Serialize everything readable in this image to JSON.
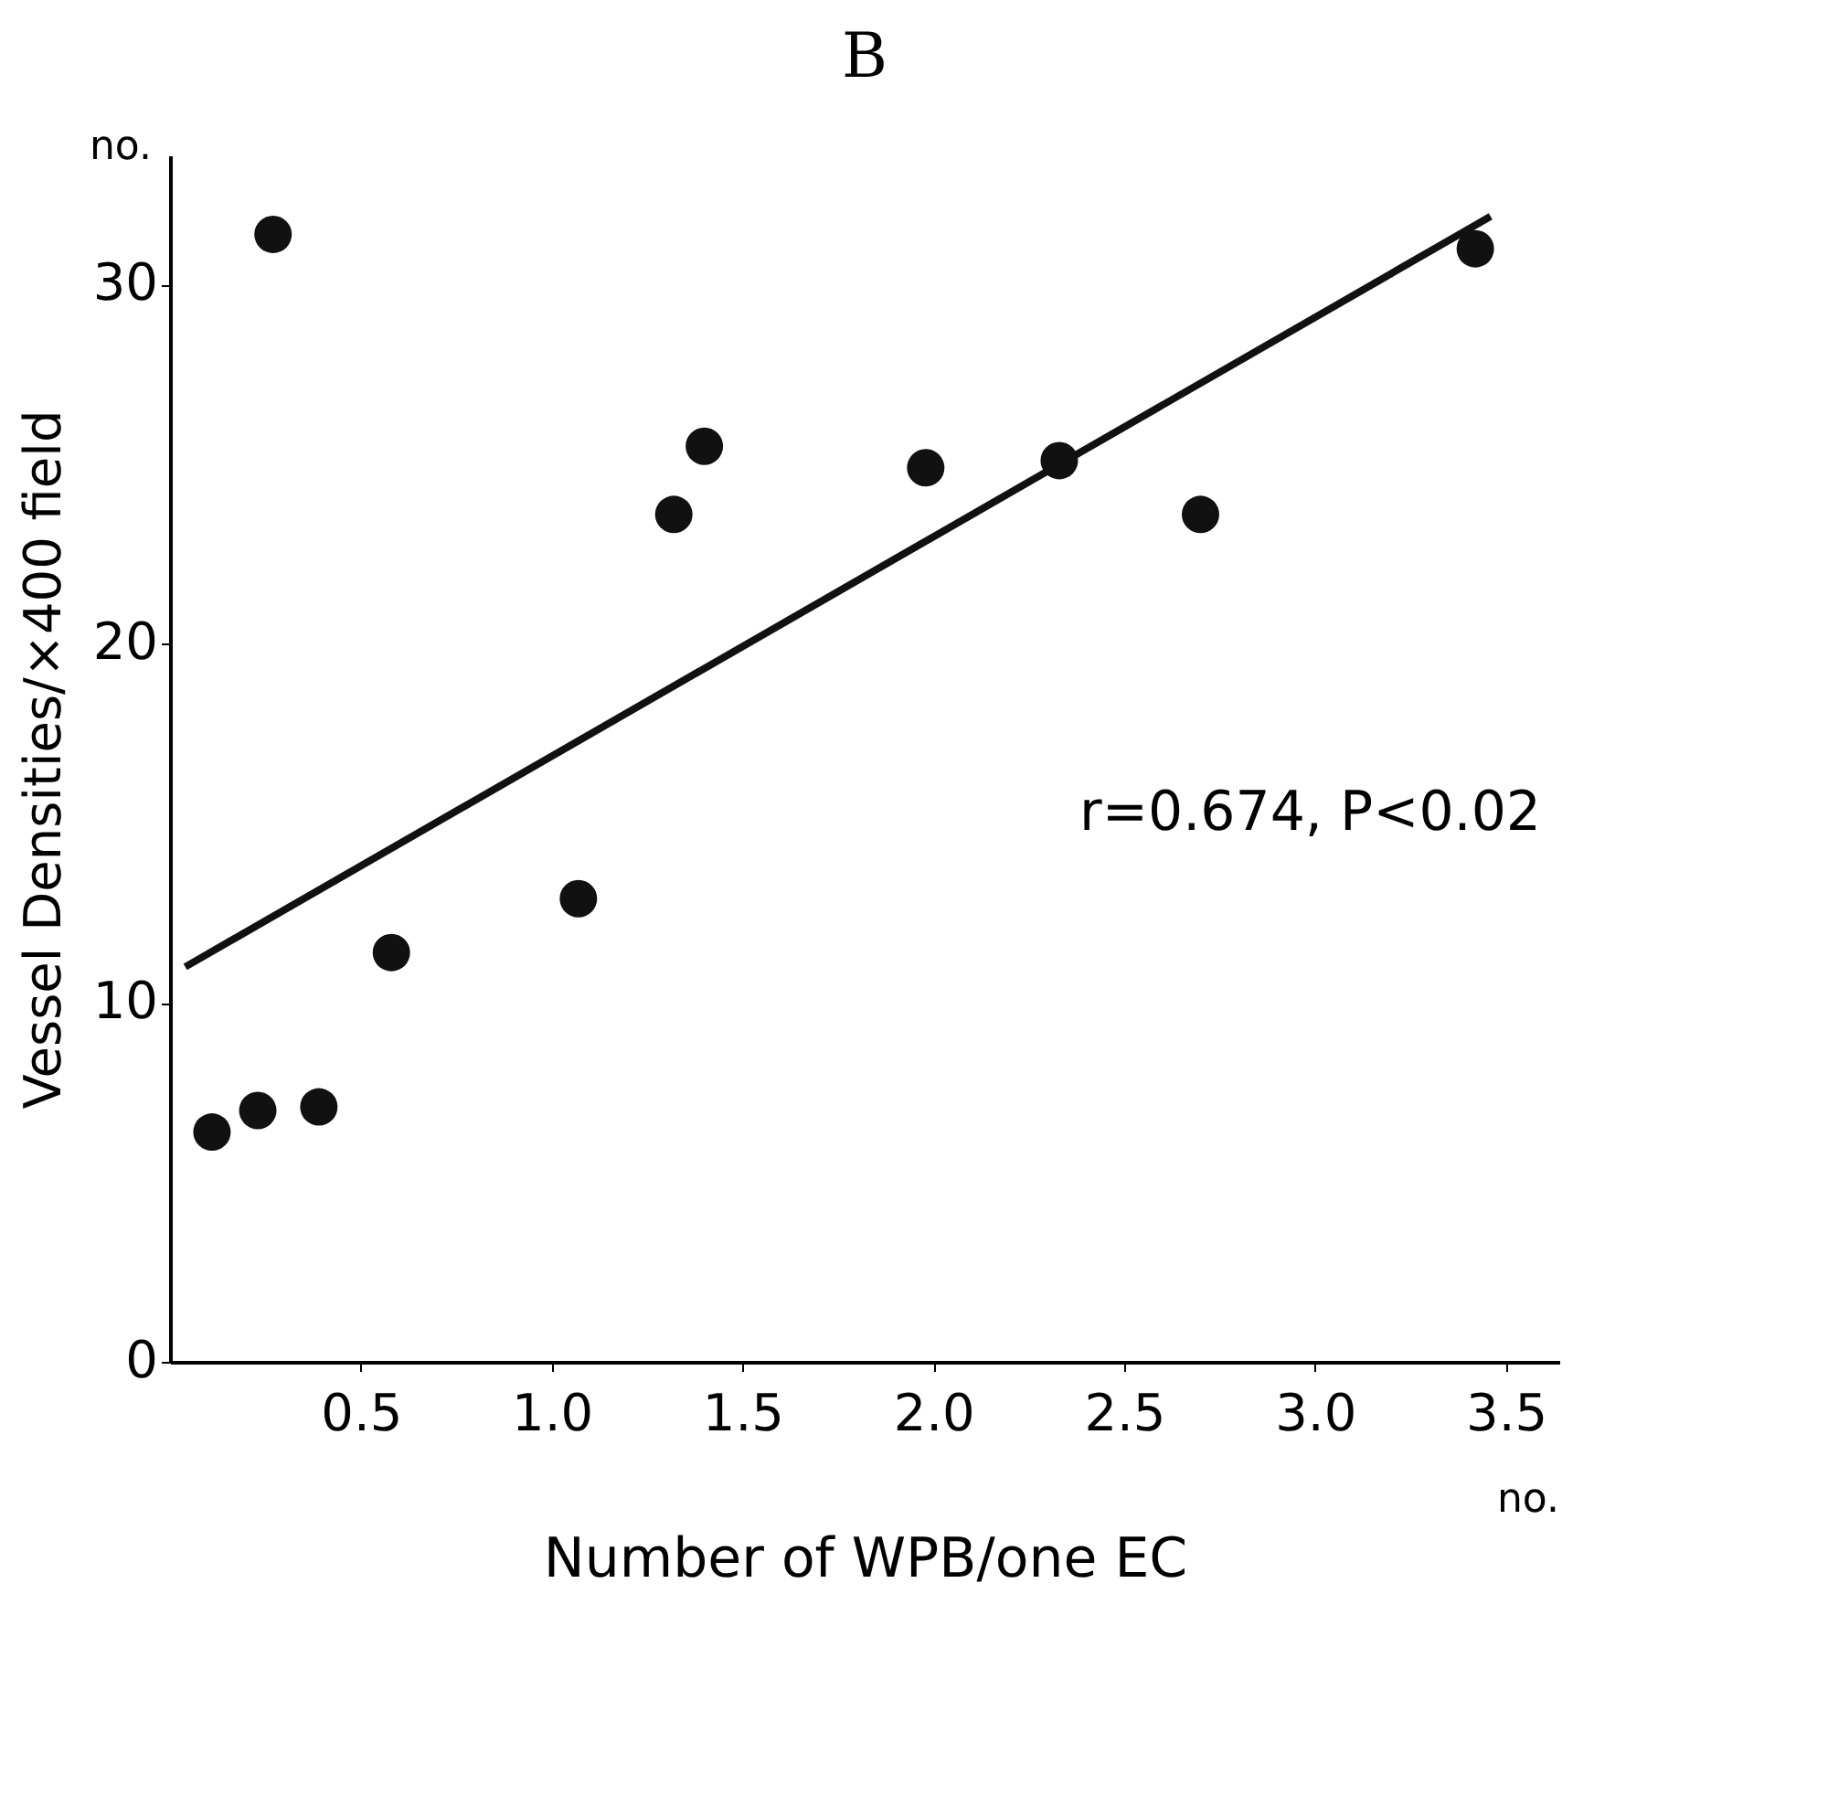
{
  "chart_data": {
    "type": "scatter",
    "title": "B",
    "xlabel": "Number of WPB/one EC",
    "ylabel": "Vessel Densities/×400 field",
    "x": [
      0.11,
      0.23,
      0.27,
      0.39,
      0.58,
      1.07,
      1.32,
      1.4,
      1.98,
      2.33,
      2.7,
      3.42
    ],
    "series": [
      {
        "color": "#111111",
        "marker": "circle",
        "values": [
          6.4,
          7.0,
          31.4,
          7.1,
          11.4,
          12.9,
          23.6,
          25.5,
          24.9,
          25.1,
          23.6,
          31.0
        ]
      },
      {
        "type": "line",
        "color": "#111111",
        "x": [
          0.04,
          3.46
        ],
        "values": [
          11.0,
          31.9
        ]
      }
    ],
    "xlim": [
      0,
      3.64
    ],
    "ylim": [
      0,
      33.6
    ],
    "xticks": [
      {
        "value": 0.5,
        "label": "0.5"
      },
      {
        "value": 1,
        "label": "1.0"
      },
      {
        "value": 1.5,
        "label": "1.5"
      },
      {
        "value": 2,
        "label": "2.0"
      },
      {
        "value": 2.5,
        "label": "2.5"
      },
      {
        "value": 3,
        "label": "3.0"
      },
      {
        "value": 3.5,
        "label": "3.5"
      }
    ],
    "yticks": [
      0,
      10,
      20,
      30
    ],
    "annotations": [
      "r=0.674, P<0.02",
      "no.",
      "no."
    ],
    "grid": false,
    "line_style": "solid"
  }
}
